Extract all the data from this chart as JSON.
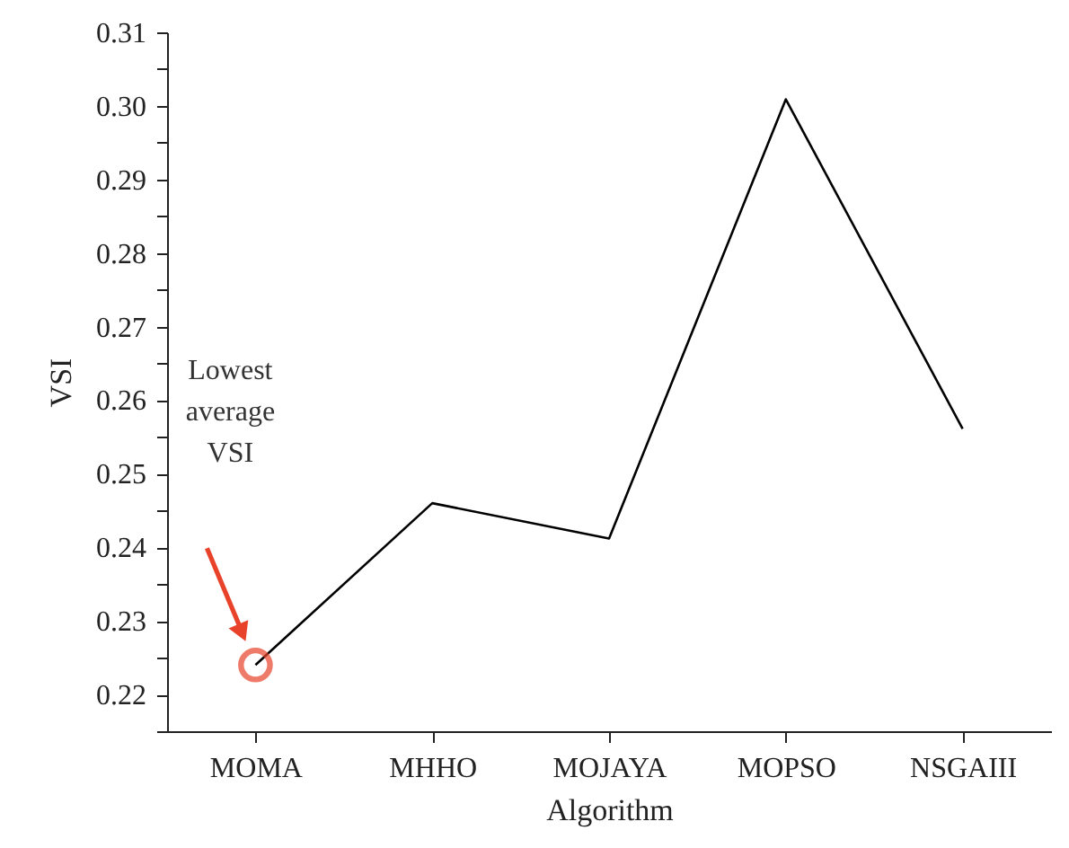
{
  "chart_data": {
    "type": "line",
    "xlabel": "Algorithm",
    "ylabel": "VSI",
    "categories": [
      "MOMA",
      "MHHO",
      "MOJAYA",
      "MOPSO",
      "NSGAIII"
    ],
    "series": [
      {
        "color": "#000000",
        "values": [
          0.224,
          0.246,
          0.2412,
          0.3009,
          0.2561
        ]
      }
    ],
    "ylim": [
      0.215,
      0.31
    ],
    "yticks": [
      {
        "value": 0.215,
        "label": null
      },
      {
        "value": 0.22,
        "label": "0.22"
      },
      {
        "value": 0.225,
        "label": null
      },
      {
        "value": 0.23,
        "label": "0.23"
      },
      {
        "value": 0.235,
        "label": null
      },
      {
        "value": 0.24,
        "label": "0.24"
      },
      {
        "value": 0.245,
        "label": null
      },
      {
        "value": 0.25,
        "label": "0.25"
      },
      {
        "value": 0.255,
        "label": null
      },
      {
        "value": 0.26,
        "label": "0.26"
      },
      {
        "value": 0.265,
        "label": null
      },
      {
        "value": 0.27,
        "label": "0.27"
      },
      {
        "value": 0.275,
        "label": null
      },
      {
        "value": 0.28,
        "label": "0.28"
      },
      {
        "value": 0.285,
        "label": null
      },
      {
        "value": 0.29,
        "label": "0.29"
      },
      {
        "value": 0.295,
        "label": null
      },
      {
        "value": 0.3,
        "label": "0.30"
      },
      {
        "value": 0.305,
        "label": null
      },
      {
        "value": 0.31,
        "label": "0.31"
      }
    ],
    "grid": false,
    "marker": "none",
    "line_style": "solid",
    "annotations": [
      "Lowest average VSI"
    ]
  }
}
